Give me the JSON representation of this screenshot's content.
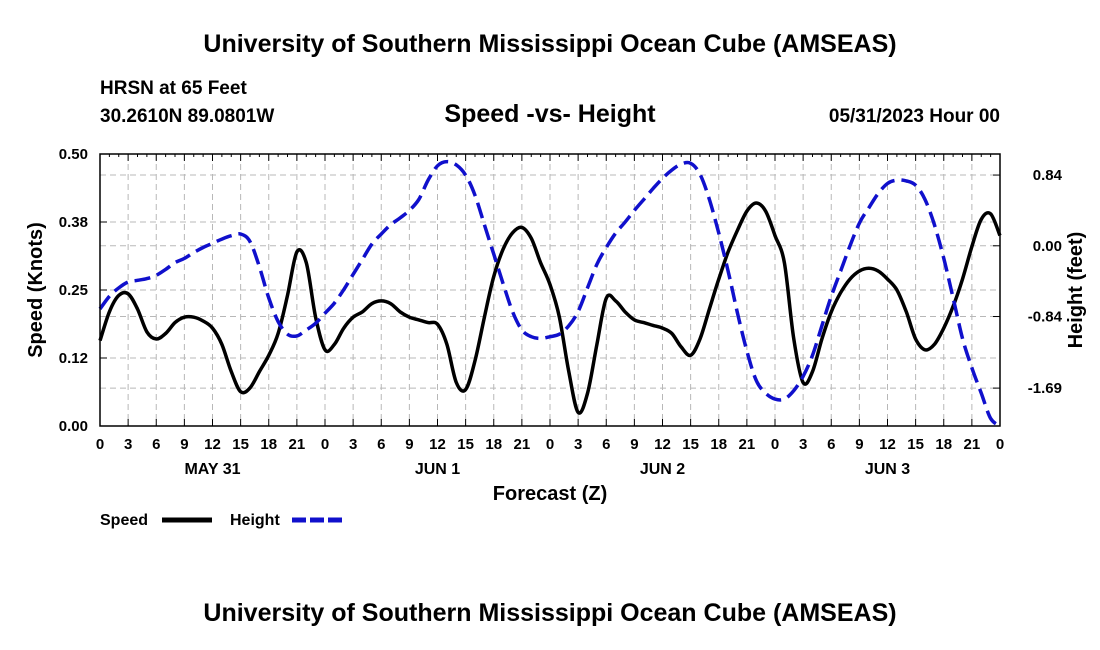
{
  "header": {
    "title": "University of Southern Mississippi Ocean Cube (AMSEAS)",
    "station": "HRSN at 65 Feet",
    "coordinates": "30.2610N  89.0801W",
    "subtitle": "Speed -vs- Height",
    "datetime": "05/31/2023 Hour 00"
  },
  "footer": {
    "title": "University of Southern Mississippi Ocean Cube (AMSEAS)"
  },
  "chart_data": {
    "type": "line",
    "title": "Speed -vs- Height",
    "xlabel": "Forecast (Z)",
    "ylabel": "Speed (Knots)",
    "y2label": "Height (feet)",
    "xlim": [
      0,
      96
    ],
    "ylim": [
      0,
      0.5
    ],
    "y2lim": [
      -2.14,
      1.09
    ],
    "grid": true,
    "x_tick_labels": [
      "0",
      "3",
      "6",
      "9",
      "12",
      "15",
      "18",
      "21",
      "0",
      "3",
      "6",
      "9",
      "12",
      "15",
      "18",
      "21",
      "0",
      "3",
      "6",
      "9",
      "12",
      "15",
      "18",
      "21",
      "0",
      "3",
      "6",
      "9",
      "12",
      "15",
      "18",
      "21",
      "0"
    ],
    "y_tick_labels": [
      "0.00",
      "0.12",
      "0.25",
      "0.38",
      "0.50"
    ],
    "y_tick_values": [
      0.0,
      0.125,
      0.25,
      0.375,
      0.5
    ],
    "y2_tick_labels": [
      "0.84",
      "0.00",
      "-0.84",
      "-1.69"
    ],
    "y2_tick_values": [
      0.84,
      0.0,
      -0.84,
      -1.69
    ],
    "day_labels": [
      {
        "label": "MAY 31",
        "hour": 12
      },
      {
        "label": "JUN 1",
        "hour": 36
      },
      {
        "label": "JUN 2",
        "hour": 60
      },
      {
        "label": "JUN 3",
        "hour": 84
      }
    ],
    "legend": [
      {
        "name": "Speed",
        "color": "#000000",
        "style": "solid"
      },
      {
        "name": "Height",
        "color": "#1010cc",
        "style": "dashed"
      }
    ],
    "series": [
      {
        "name": "Speed",
        "axis": "left",
        "color": "#000000",
        "x": [
          0,
          1,
          2,
          3,
          4,
          5,
          6,
          7,
          8,
          9,
          10,
          11,
          12,
          13,
          14,
          15,
          16,
          17,
          18,
          19,
          20,
          21,
          22,
          23,
          24,
          25,
          26,
          27,
          28,
          29,
          30,
          31,
          32,
          33,
          34,
          35,
          36,
          37,
          38,
          39,
          40,
          41,
          42,
          43,
          44,
          45,
          46,
          47,
          48,
          49,
          50,
          51,
          52,
          53,
          54,
          55,
          56,
          57,
          58,
          59,
          60,
          61,
          62,
          63,
          64,
          65,
          66,
          67,
          68,
          69,
          70,
          71,
          72,
          73,
          74,
          75,
          76,
          77,
          78,
          79,
          80,
          81,
          82,
          83,
          84,
          85,
          86,
          87,
          88,
          89,
          90,
          91,
          92,
          93,
          94,
          95,
          96
        ],
        "values": [
          0.157,
          0.21,
          0.24,
          0.243,
          0.215,
          0.173,
          0.16,
          0.17,
          0.19,
          0.2,
          0.2,
          0.193,
          0.18,
          0.15,
          0.1,
          0.063,
          0.07,
          0.1,
          0.13,
          0.17,
          0.24,
          0.32,
          0.3,
          0.2,
          0.14,
          0.15,
          0.18,
          0.2,
          0.21,
          0.225,
          0.23,
          0.225,
          0.21,
          0.2,
          0.195,
          0.19,
          0.187,
          0.15,
          0.08,
          0.067,
          0.12,
          0.2,
          0.275,
          0.325,
          0.355,
          0.365,
          0.345,
          0.3,
          0.26,
          0.2,
          0.1,
          0.025,
          0.06,
          0.15,
          0.235,
          0.23,
          0.21,
          0.195,
          0.19,
          0.185,
          0.18,
          0.17,
          0.145,
          0.13,
          0.16,
          0.215,
          0.27,
          0.32,
          0.36,
          0.395,
          0.41,
          0.395,
          0.35,
          0.3,
          0.16,
          0.08,
          0.1,
          0.16,
          0.21,
          0.245,
          0.27,
          0.285,
          0.29,
          0.285,
          0.27,
          0.25,
          0.21,
          0.16,
          0.14,
          0.15,
          0.18,
          0.22,
          0.27,
          0.33,
          0.38,
          0.39,
          0.35
        ]
      },
      {
        "name": "Height",
        "axis": "right",
        "color": "#1010cc",
        "x": [
          0,
          1,
          2,
          3,
          4,
          5,
          6,
          7,
          8,
          9,
          10,
          11,
          12,
          13,
          14,
          15,
          16,
          17,
          18,
          19,
          20,
          21,
          22,
          23,
          24,
          25,
          26,
          27,
          28,
          29,
          30,
          31,
          32,
          33,
          34,
          35,
          36,
          37,
          38,
          39,
          40,
          41,
          42,
          43,
          44,
          45,
          46,
          47,
          48,
          49,
          50,
          51,
          52,
          53,
          54,
          55,
          56,
          57,
          58,
          59,
          60,
          61,
          62,
          63,
          64,
          65,
          66,
          67,
          68,
          69,
          70,
          71,
          72,
          73,
          74,
          75,
          76,
          77,
          78,
          79,
          80,
          81,
          82,
          83,
          84,
          85,
          86,
          87,
          88,
          89,
          90,
          91,
          92,
          93,
          94,
          95,
          96
        ],
        "values": [
          -0.75,
          -0.6,
          -0.5,
          -0.43,
          -0.41,
          -0.39,
          -0.35,
          -0.28,
          -0.2,
          -0.15,
          -0.08,
          -0.02,
          0.03,
          0.08,
          0.12,
          0.14,
          0.05,
          -0.25,
          -0.62,
          -0.9,
          -1.05,
          -1.07,
          -1.0,
          -0.92,
          -0.8,
          -0.68,
          -0.52,
          -0.34,
          -0.16,
          0.02,
          0.14,
          0.25,
          0.33,
          0.42,
          0.55,
          0.78,
          0.95,
          1.0,
          0.96,
          0.84,
          0.6,
          0.25,
          -0.1,
          -0.45,
          -0.78,
          -1.0,
          -1.08,
          -1.1,
          -1.08,
          -1.05,
          -0.95,
          -0.78,
          -0.5,
          -0.22,
          -0.02,
          0.15,
          0.28,
          0.42,
          0.55,
          0.68,
          0.8,
          0.9,
          0.97,
          0.98,
          0.85,
          0.55,
          0.15,
          -0.3,
          -0.8,
          -1.25,
          -1.6,
          -1.75,
          -1.82,
          -1.82,
          -1.72,
          -1.55,
          -1.3,
          -0.95,
          -0.6,
          -0.3,
          0.0,
          0.27,
          0.45,
          0.62,
          0.74,
          0.78,
          0.77,
          0.72,
          0.55,
          0.25,
          -0.15,
          -0.62,
          -1.1,
          -1.45,
          -1.75,
          -2.05,
          -2.14
        ]
      }
    ]
  }
}
